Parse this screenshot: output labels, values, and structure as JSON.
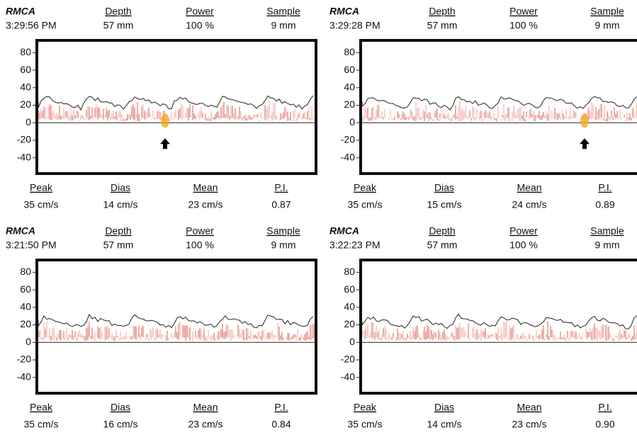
{
  "panels": [
    {
      "vessel": "RMCA",
      "time": "3:29:56 PM",
      "header": [
        {
          "label": "Depth",
          "value": "57 mm"
        },
        {
          "label": "Power",
          "value": "100 %"
        },
        {
          "label": "Sample",
          "value": "9 mm"
        }
      ],
      "ylim": [
        -58,
        94
      ],
      "yticks": [
        80,
        60,
        40,
        20,
        0,
        -20,
        -40
      ],
      "footer": [
        {
          "label": "Peak",
          "value": "35 cm/s"
        },
        {
          "label": "Dias",
          "value": "14 cm/s"
        },
        {
          "label": "Mean",
          "value": "23 cm/s"
        },
        {
          "label": "P.I.",
          "value": "0.87"
        }
      ]
    },
    {
      "vessel": "RMCA",
      "time": "3:29:28 PM",
      "header": [
        {
          "label": "Depth",
          "value": "57 mm"
        },
        {
          "label": "Power",
          "value": "100 %"
        },
        {
          "label": "Sample",
          "value": "9 mm"
        }
      ],
      "ylim": [
        -58,
        94
      ],
      "yticks": [
        80,
        60,
        40,
        20,
        0,
        -20,
        -40
      ],
      "footer": [
        {
          "label": "Peak",
          "value": "35 cm/s"
        },
        {
          "label": "Dias",
          "value": "15 cm/s"
        },
        {
          "label": "Mean",
          "value": "24 cm/s"
        },
        {
          "label": "P.I.",
          "value": "0.89"
        }
      ]
    },
    {
      "vessel": "RMCA",
      "time": "3:21:50 PM",
      "header": [
        {
          "label": "Depth",
          "value": "57 mm"
        },
        {
          "label": "Power",
          "value": "100 %"
        },
        {
          "label": "Sample",
          "value": "9 mm"
        }
      ],
      "ylim": [
        -58,
        94
      ],
      "yticks": [
        80,
        60,
        40,
        20,
        0,
        -20,
        -40
      ],
      "footer": [
        {
          "label": "Peak",
          "value": "35 cm/s"
        },
        {
          "label": "Dias",
          "value": "16 cm/s"
        },
        {
          "label": "Mean",
          "value": "23 cm/s"
        },
        {
          "label": "P.I.",
          "value": "0.84"
        }
      ]
    },
    {
      "vessel": "RMCA",
      "time": "3:22:23 PM",
      "header": [
        {
          "label": "Depth",
          "value": "57 mm"
        },
        {
          "label": "Power",
          "value": "100 %"
        },
        {
          "label": "Sample",
          "value": "9 mm"
        }
      ],
      "ylim": [
        -58,
        94
      ],
      "yticks": [
        80,
        60,
        40,
        20,
        0,
        -20,
        -40
      ],
      "footer": [
        {
          "label": "Peak",
          "value": "35 cm/s"
        },
        {
          "label": "Dias",
          "value": "14 cm/s"
        },
        {
          "label": "Mean",
          "value": "23 cm/s"
        },
        {
          "label": "P.I.",
          "value": "0.90"
        }
      ]
    }
  ]
}
